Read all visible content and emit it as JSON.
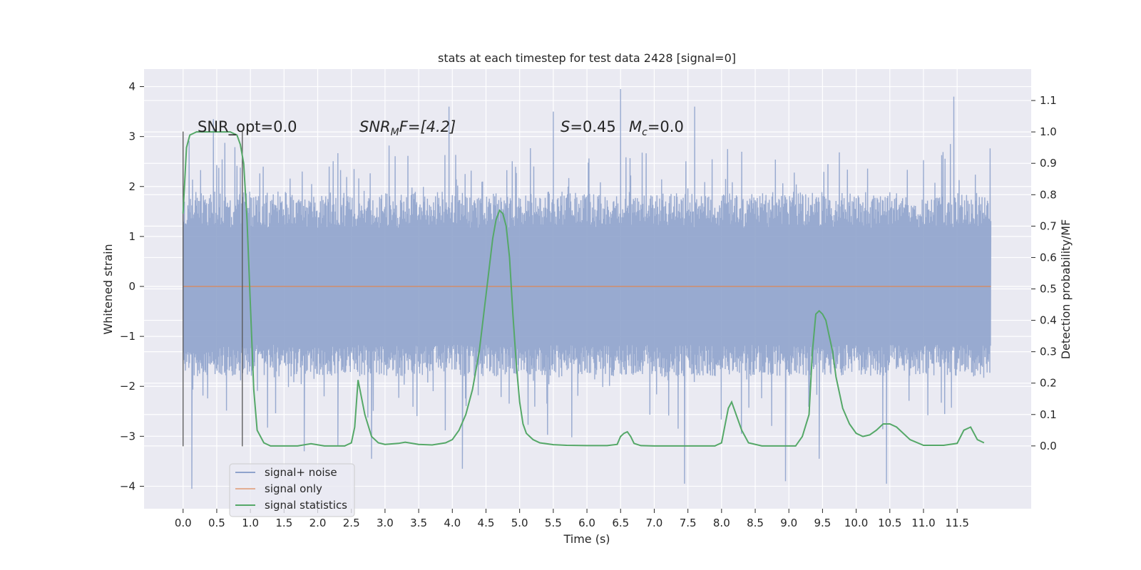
{
  "chart_data": {
    "type": "line",
    "title": "stats at each timestep for test data 2428 [signal=0]",
    "xlabel": "Time (s)",
    "ylabel_left": "Whitened strain",
    "ylabel_right": "Detection probability/MF",
    "xlim": [
      -0.58,
      12.6
    ],
    "ylim_left": [
      -4.45,
      4.35
    ],
    "ylim_right": [
      -0.2,
      1.2
    ],
    "x_ticks": [
      "0.0",
      "0.5",
      "1.0",
      "1.5",
      "2.0",
      "2.5",
      "3.0",
      "3.5",
      "4.0",
      "4.5",
      "5.0",
      "5.5",
      "6.0",
      "6.5",
      "7.0",
      "7.5",
      "8.0",
      "8.5",
      "9.0",
      "9.5",
      "10.0",
      "10.5",
      "11.0",
      "11.5"
    ],
    "y_ticks_left": [
      "4",
      "3",
      "2",
      "1",
      "0",
      "−1",
      "−2",
      "−3",
      "−4"
    ],
    "y_ticks_right": [
      "1.1",
      "1.0",
      "0.9",
      "0.8",
      "0.7",
      "0.6",
      "0.5",
      "0.4",
      "0.3",
      "0.2",
      "0.1",
      "0.0"
    ],
    "grid": true,
    "legend_position": "lower-left",
    "colors": {
      "noise": "#8fa3cc",
      "signal_only": "#dd8452",
      "statistics": "#55a868",
      "background": "#eaeaf2",
      "grid": "#ffffff",
      "marker_lines": "#555555"
    },
    "annotations": {
      "snr_opt": "SNR_opt=0.0",
      "snr_mf_main": "SNR",
      "snr_mf_sub": "M",
      "snr_mf_tail": "F=[4.2]",
      "s_main": "S",
      "s_tail": "=0.45",
      "mc_main": "M",
      "mc_sub": "c",
      "mc_tail": "=0.0"
    },
    "marker_lines_x": [
      0.0,
      0.88
    ],
    "series": [
      {
        "name": "signal+ noise",
        "x_range": [
          0.0,
          12.0
        ],
        "approx_band": [
          -1.8,
          1.9
        ],
        "extremes": [
          {
            "x": 0.13,
            "y": -4.05
          },
          {
            "x": 1.8,
            "y": -3.3
          },
          {
            "x": 2.3,
            "y": -3.2
          },
          {
            "x": 2.8,
            "y": -3.45
          },
          {
            "x": 4.15,
            "y": -3.65
          },
          {
            "x": 7.45,
            "y": -3.95
          },
          {
            "x": 8.95,
            "y": -3.9
          },
          {
            "x": 9.45,
            "y": -3.45
          },
          {
            "x": 10.45,
            "y": -3.95
          },
          {
            "x": 11.45,
            "y": 3.8
          },
          {
            "x": 6.5,
            "y": 3.95
          },
          {
            "x": 3.95,
            "y": 3.6
          },
          {
            "x": 5.5,
            "y": 3.5
          },
          {
            "x": 7.6,
            "y": 3.6
          },
          {
            "x": 0.45,
            "y": 3.35
          }
        ]
      },
      {
        "name": "signal only",
        "x": [
          0.0,
          12.0
        ],
        "y": [
          0.0,
          0.0
        ]
      },
      {
        "name": "signal statistics",
        "x": [
          0.0,
          0.05,
          0.1,
          0.2,
          0.3,
          0.5,
          0.7,
          0.8,
          0.85,
          0.9,
          0.95,
          1.0,
          1.05,
          1.1,
          1.2,
          1.3,
          1.5,
          1.7,
          1.9,
          2.1,
          2.3,
          2.4,
          2.5,
          2.55,
          2.6,
          2.7,
          2.8,
          2.9,
          3.0,
          3.2,
          3.3,
          3.5,
          3.7,
          3.9,
          4.0,
          4.1,
          4.2,
          4.3,
          4.4,
          4.5,
          4.6,
          4.65,
          4.7,
          4.75,
          4.8,
          4.85,
          4.9,
          4.95,
          5.0,
          5.05,
          5.1,
          5.2,
          5.3,
          5.5,
          5.7,
          6.0,
          6.3,
          6.45,
          6.5,
          6.55,
          6.6,
          6.65,
          6.7,
          6.8,
          7.0,
          7.5,
          7.9,
          8.0,
          8.1,
          8.15,
          8.2,
          8.3,
          8.4,
          8.6,
          8.9,
          9.1,
          9.2,
          9.3,
          9.35,
          9.4,
          9.45,
          9.5,
          9.55,
          9.6,
          9.65,
          9.7,
          9.8,
          9.9,
          10.0,
          10.1,
          10.2,
          10.3,
          10.4,
          10.5,
          10.6,
          10.8,
          11.0,
          11.3,
          11.5,
          11.6,
          11.7,
          11.8,
          11.9
        ],
        "y": [
          0.74,
          0.95,
          0.99,
          1.0,
          1.0,
          1.0,
          1.0,
          0.99,
          0.96,
          0.9,
          0.72,
          0.45,
          0.18,
          0.05,
          0.01,
          0.0,
          0.0,
          0.0,
          0.007,
          0.0,
          0.0,
          0.0,
          0.01,
          0.06,
          0.21,
          0.1,
          0.03,
          0.01,
          0.005,
          0.008,
          0.012,
          0.005,
          0.003,
          0.01,
          0.02,
          0.05,
          0.1,
          0.18,
          0.3,
          0.48,
          0.66,
          0.72,
          0.75,
          0.74,
          0.7,
          0.6,
          0.42,
          0.26,
          0.14,
          0.07,
          0.04,
          0.02,
          0.01,
          0.004,
          0.002,
          0.001,
          0.001,
          0.005,
          0.03,
          0.04,
          0.045,
          0.03,
          0.008,
          0.001,
          0.0,
          0.0,
          0.0,
          0.01,
          0.12,
          0.14,
          0.11,
          0.05,
          0.01,
          0.0,
          0.0,
          0.0,
          0.03,
          0.1,
          0.3,
          0.42,
          0.43,
          0.42,
          0.4,
          0.35,
          0.3,
          0.22,
          0.12,
          0.07,
          0.04,
          0.03,
          0.035,
          0.05,
          0.07,
          0.07,
          0.06,
          0.02,
          0.002,
          0.002,
          0.008,
          0.05,
          0.06,
          0.02,
          0.01
        ]
      }
    ]
  }
}
